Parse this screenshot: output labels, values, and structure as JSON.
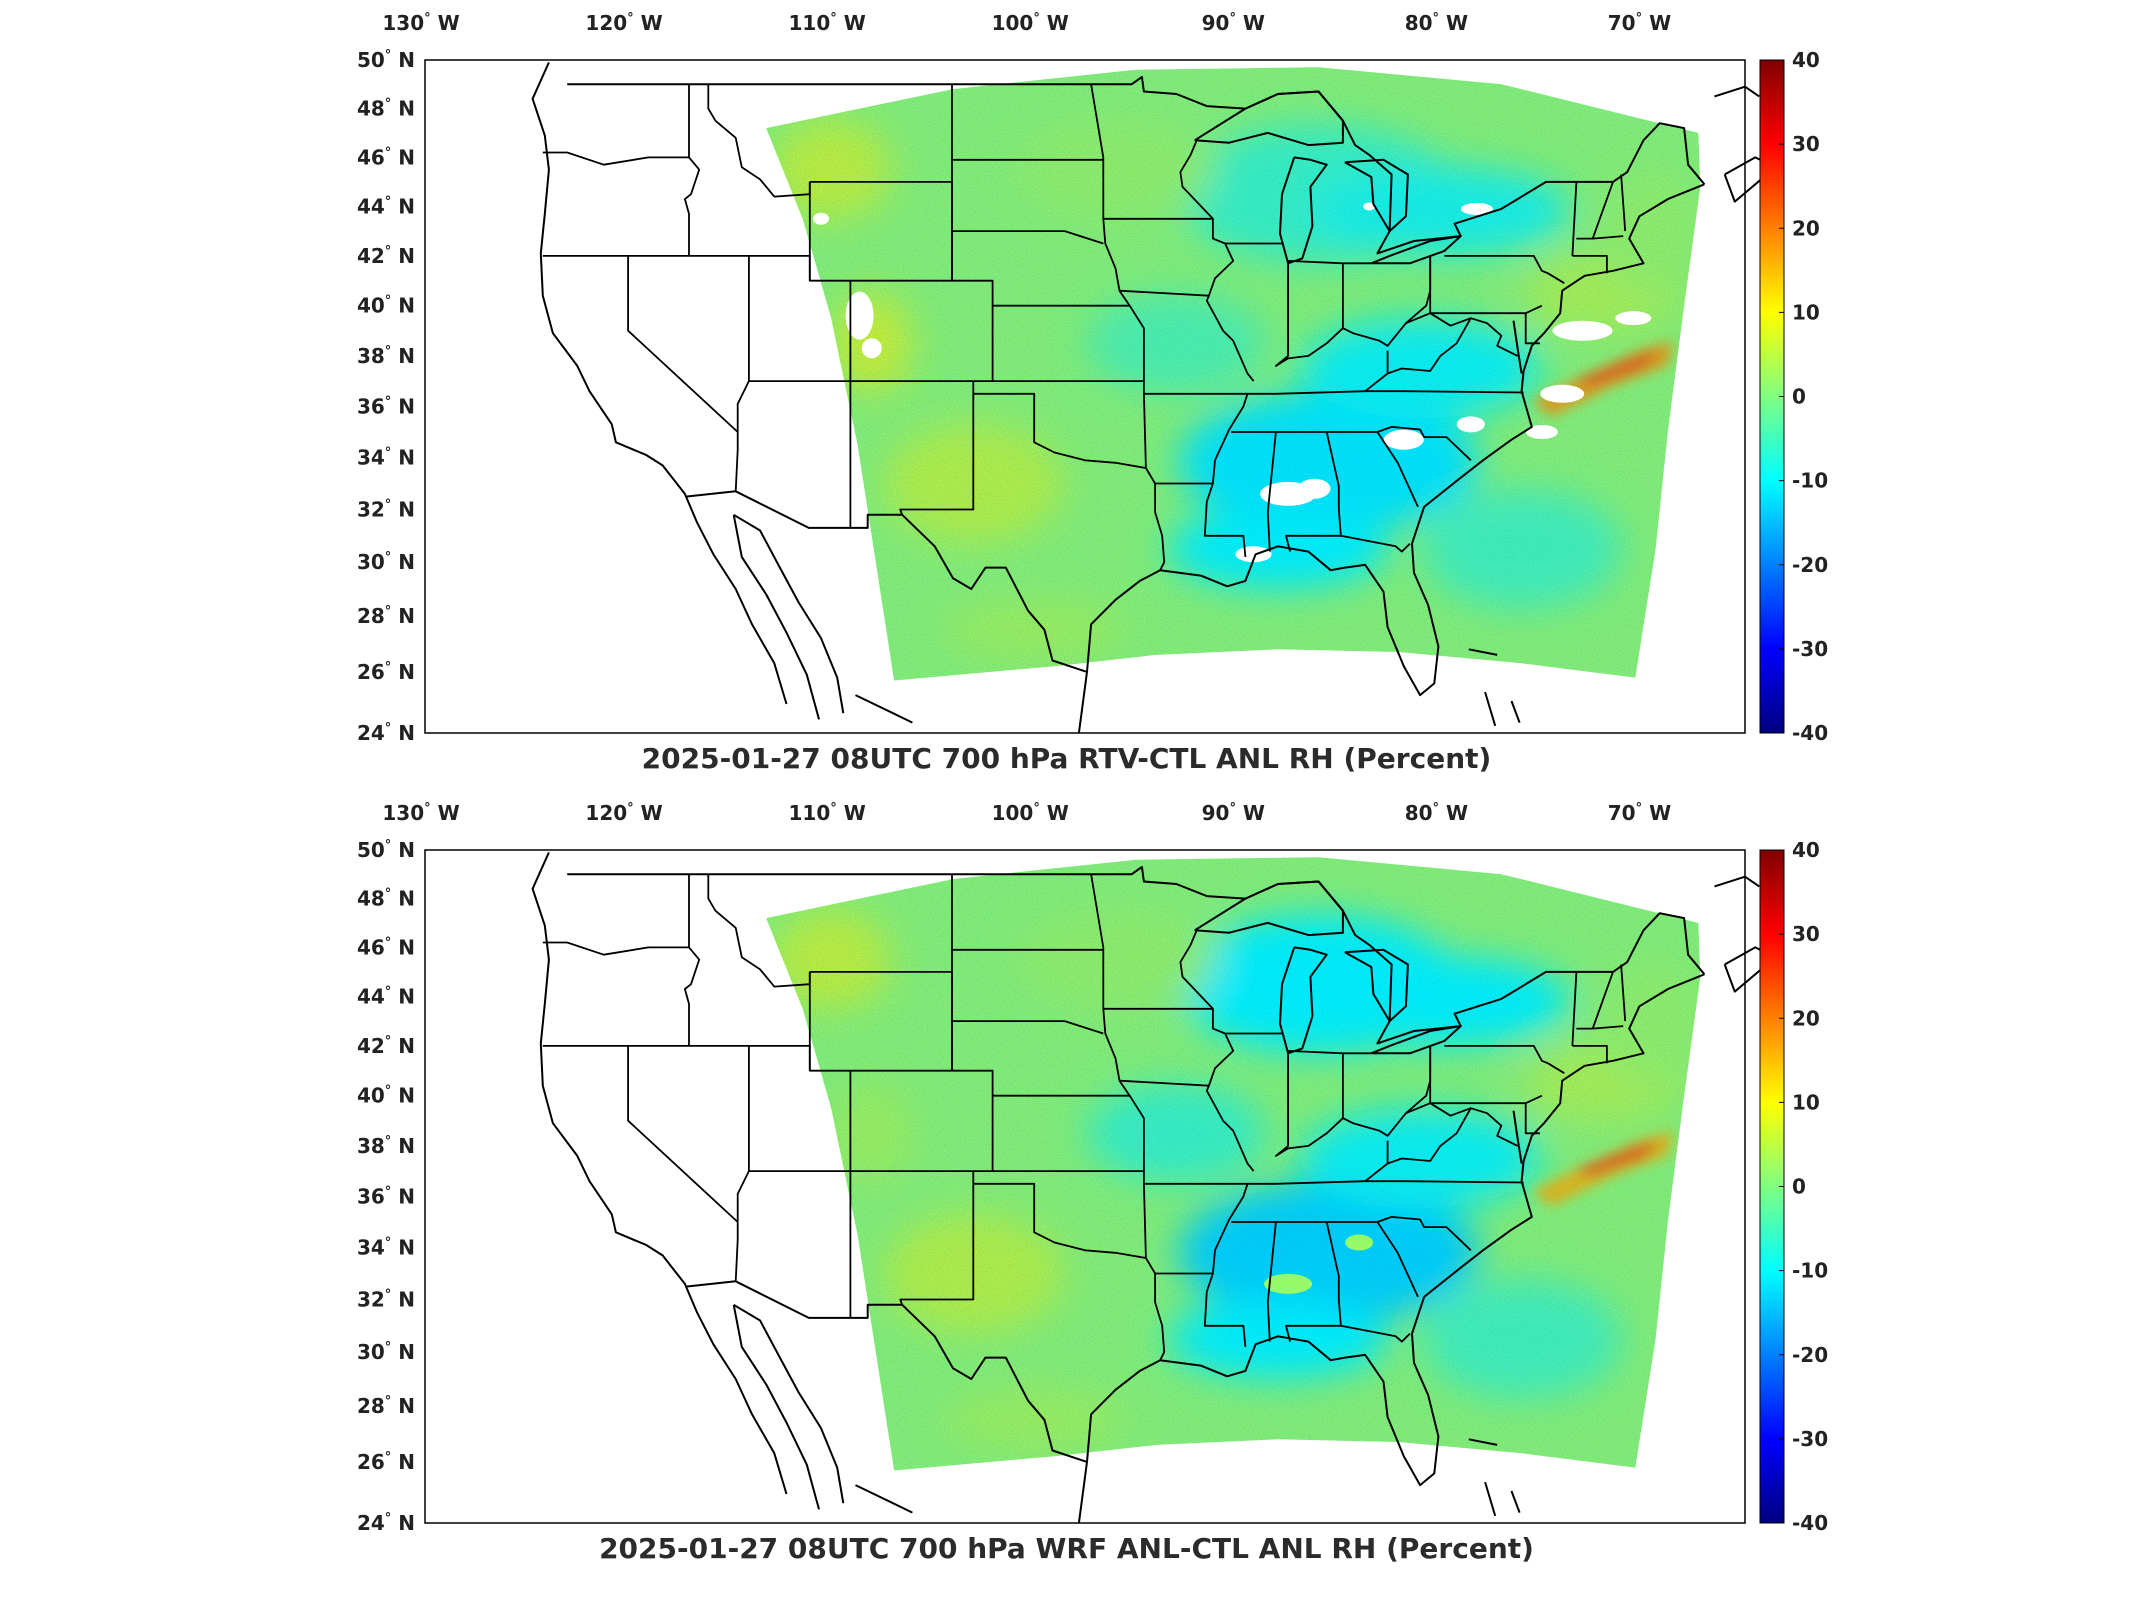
{
  "colors": {
    "frame": "#000000",
    "state_lines": "#000000",
    "missing_data": "#ffffff"
  },
  "colorbar": {
    "colormap": "jet",
    "min": -40,
    "max": 40,
    "ticks": [
      "40",
      "30",
      "20",
      "10",
      "0",
      "-10",
      "-20",
      "-30",
      "-40"
    ]
  },
  "axes": {
    "lon_ticks": [
      "130",
      "120",
      "110",
      "100",
      "90",
      "80",
      "70"
    ],
    "lon_suffix": "W",
    "lat_ticks": [
      "50",
      "48",
      "46",
      "44",
      "42",
      "40",
      "38",
      "36",
      "34",
      "32",
      "30",
      "28",
      "26",
      "24"
    ],
    "lat_suffix": "N",
    "degree_symbol": "°",
    "lon_range": [
      -130,
      -65
    ],
    "lat_range": [
      24,
      50
    ]
  },
  "panels": [
    {
      "id": "top",
      "title": "2025-01-27 08UTC 700 hPa RTV-CTL ANL RH (Percent)",
      "field_pattern": "mostly near zero, negative (cyan/blue) over the southeast, positive (orange) off the mid-Atlantic coast, missing-data gaps over the southeast and Colorado"
    },
    {
      "id": "bottom",
      "title": "2025-01-27 08UTC 700 hPa WRF ANL-CTL ANL RH (Percent)",
      "field_pattern": "similar to top panel without missing-data gaps; negative over the southeast and Great Lakes, positive off the mid-Atlantic coast"
    }
  ]
}
